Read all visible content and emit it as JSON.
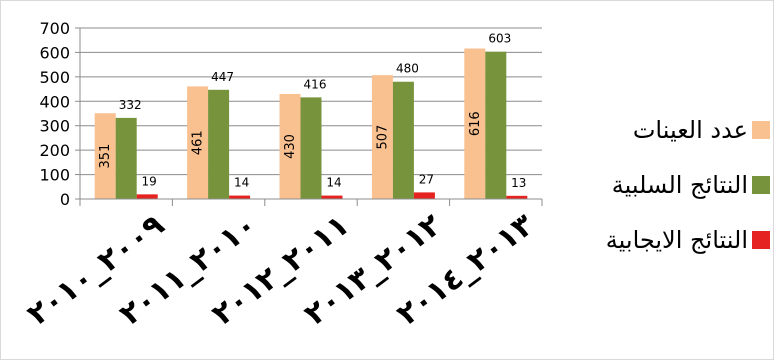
{
  "chart_data": {
    "type": "bar",
    "categories": [
      "٢٠٠٩_٢٠١٠",
      "٢٠١٠_٢٠١١",
      "٢٠١١_٢٠١٢",
      "٢٠١٢_٢٠١٣",
      "٢٠١٣_٢٠١٤"
    ],
    "series": [
      {
        "name": "عدد العينات",
        "color": "#f9c090",
        "values": [
          351,
          461,
          430,
          507,
          616
        ]
      },
      {
        "name": "النتائج السلبية",
        "color": "#77933c",
        "values": [
          332,
          447,
          416,
          480,
          603
        ]
      },
      {
        "name": "النتائج الايجابية",
        "color": "#e52320",
        "values": [
          19,
          14,
          14,
          27,
          13
        ]
      }
    ],
    "yticks": [
      0,
      100,
      200,
      300,
      400,
      500,
      600,
      700
    ],
    "ylim": [
      0,
      700
    ],
    "title": "",
    "xlabel": "",
    "ylabel": "",
    "grid": true,
    "legend_position": "right"
  }
}
